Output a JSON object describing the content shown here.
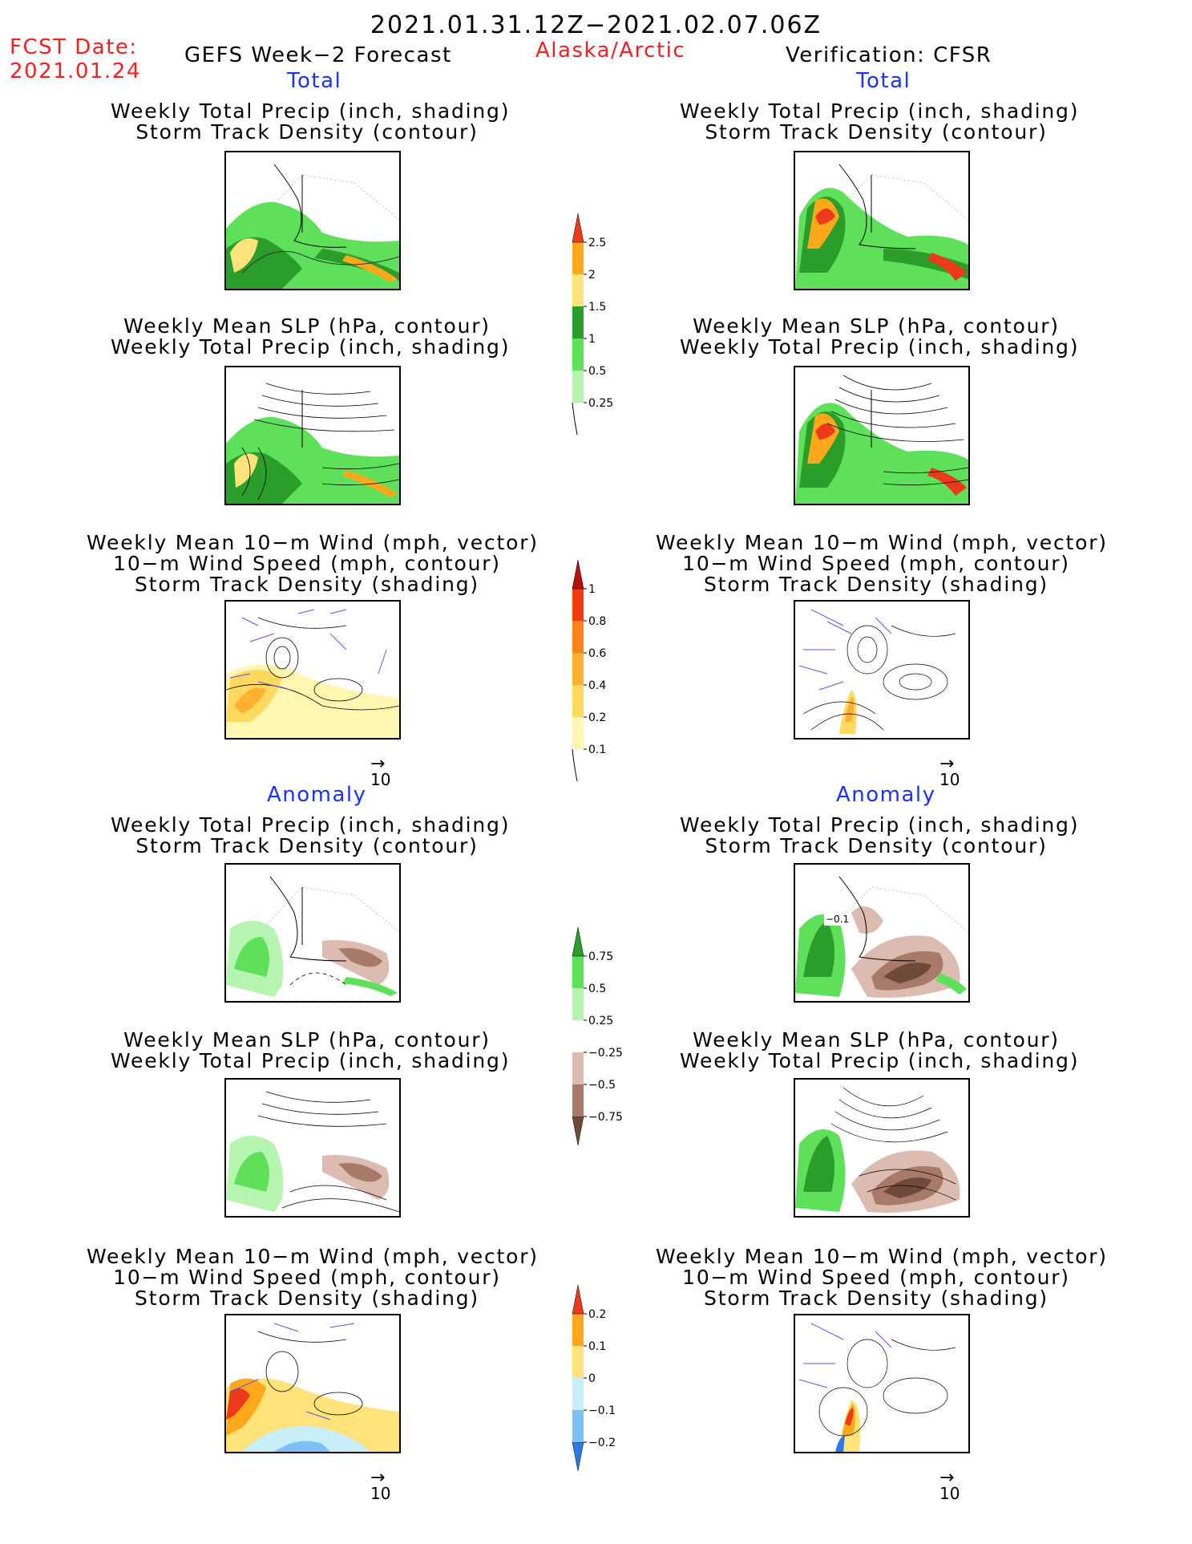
{
  "header": {
    "date_range": "2021.01.31.12Z−2021.02.07.06Z",
    "fcst_label": "FCST Date:",
    "fcst_date": "2021.01.24",
    "forecast": "GEFS Week−2 Forecast",
    "region": "Alaska/Arctic",
    "verification": "Verification: CFSR"
  },
  "sections": {
    "total": "Total",
    "anomaly": "Anomaly"
  },
  "panel_titles": {
    "precip_track": [
      "Weekly Total Precip (inch, shading)",
      "Storm Track Density (contour)"
    ],
    "slp_precip": [
      "Weekly Mean SLP (hPa, contour)",
      "Weekly Total Precip (inch, shading)"
    ],
    "wind_track": [
      "Weekly Mean 10−m Wind (mph, vector)",
      "10−m Wind Speed (mph, contour)",
      "Storm Track Density (shading)"
    ]
  },
  "vector_ref": "10",
  "map_labels": {
    "anomaly_contour": "−0.1"
  },
  "colorbars": {
    "precip_total": {
      "ticks": [
        "0.25",
        "0.5",
        "1",
        "1.5",
        "2",
        "2.5"
      ],
      "colors": [
        "#b6f5b0",
        "#5ee05a",
        "#2a9d2a",
        "#ffe37a",
        "#ffa81c",
        "#ee3a1a"
      ]
    },
    "track_total": {
      "ticks": [
        "0.1",
        "0.2",
        "0.4",
        "0.6",
        "0.8",
        "1"
      ],
      "colors": [
        "#fff6b0",
        "#ffd860",
        "#ffb030",
        "#ff8218",
        "#f03a10",
        "#b80f0a"
      ]
    },
    "precip_anom": {
      "ticks": [
        "−0.75",
        "−0.5",
        "−0.25",
        "0.25",
        "0.5",
        "0.75"
      ],
      "colors": [
        "#6e4a3a",
        "#a77a6a",
        "#dcbcb0",
        "#ffffff",
        "#b6f5b0",
        "#5ee05a",
        "#2a9d2a"
      ]
    },
    "track_anom": {
      "ticks": [
        "−0.2",
        "−0.1",
        "0",
        "0.1",
        "0.2"
      ],
      "colors": [
        "#2a7ae8",
        "#7cc0f6",
        "#c8eefa",
        "#ffe37a",
        "#ffa81c",
        "#ee3a1a"
      ]
    }
  }
}
